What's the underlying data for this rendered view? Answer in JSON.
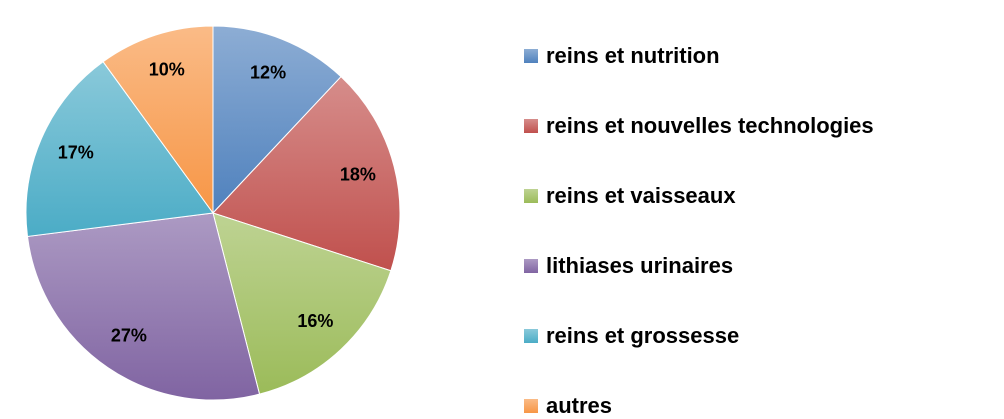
{
  "chart_data": {
    "type": "pie",
    "categories": [
      "reins et nutrition",
      "reins et nouvelles technologies",
      "reins et vaisseaux",
      "lithiases urinaires",
      "reins et grossesse",
      "autres"
    ],
    "values": [
      12,
      18,
      16,
      27,
      17,
      10
    ],
    "value_labels": [
      "12%",
      "18%",
      "16%",
      "27%",
      "17%",
      "10%"
    ],
    "colors": [
      "#4f81bd",
      "#c0504d",
      "#9bbb59",
      "#8064a2",
      "#4bacc6",
      "#f79646"
    ],
    "legend": "right"
  }
}
